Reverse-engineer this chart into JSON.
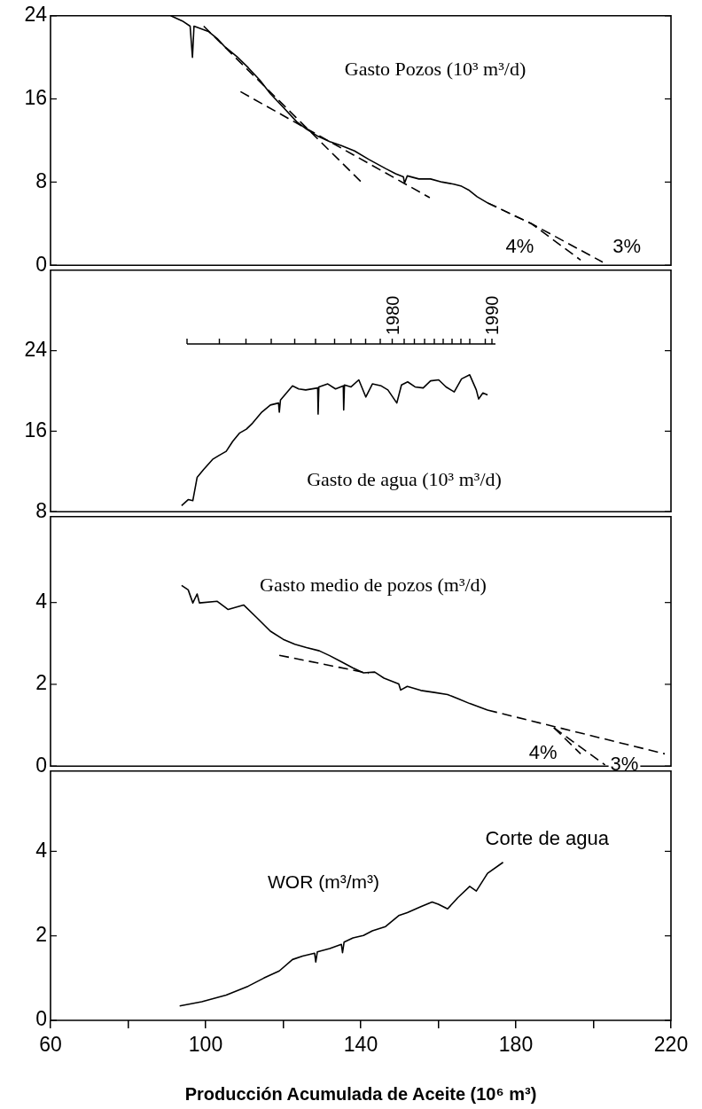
{
  "chart_data": [
    {
      "type": "line",
      "ylabel": "Gasto Pozos (10³ m³/d)",
      "xlim": [
        60,
        220
      ],
      "ylim": [
        0,
        24
      ],
      "yticks": [
        0,
        8,
        16,
        24
      ],
      "tick_labels": "y",
      "marker": "none",
      "legend": false,
      "series": [
        {
          "color": "#000000",
          "line_style": "solid",
          "x": [
            91,
            94,
            96,
            96.6,
            97,
            100.7,
            103,
            105,
            108,
            111,
            114,
            116.7,
            120,
            123.5,
            126,
            129,
            132,
            135,
            138.4,
            142,
            146.4,
            149,
            151,
            151.3,
            152,
            155,
            158,
            161,
            164,
            166,
            168,
            170,
            172.7
          ],
          "values": [
            24,
            23.5,
            23,
            20,
            23,
            22.5,
            21.8,
            21,
            20.1,
            19,
            17.8,
            16.5,
            15.2,
            13.8,
            13.1,
            12.4,
            11.9,
            11.5,
            11,
            10.2,
            9.3,
            8.8,
            8.5,
            7.9,
            8.6,
            8.3,
            8.3,
            8,
            7.8,
            7.6,
            7.2,
            6.6,
            6
          ]
        },
        {
          "color": "#000000",
          "line_style": "dashed",
          "x": [
            99.5,
            140.7
          ],
          "values": [
            23,
            7.8
          ]
        },
        {
          "color": "#000000",
          "line_style": "dashed",
          "x": [
            109,
            157.8
          ],
          "values": [
            16.7,
            6.5
          ]
        },
        {
          "color": "#000000",
          "line_style": "dashed",
          "x": [
            172.7,
            184,
            196.7
          ],
          "values": [
            6,
            4,
            0.5
          ]
        },
        {
          "color": "#000000",
          "line_style": "dashed",
          "x": [
            172.7,
            184,
            202.4
          ],
          "values": [
            6,
            4,
            0.3
          ]
        }
      ],
      "annotations": [
        {
          "text": "4%",
          "x": 181,
          "y": 1.7
        },
        {
          "text": "3%",
          "x": 208.6,
          "y": 1.7
        }
      ]
    },
    {
      "type": "line",
      "ylabel": "Gasto de agua (10³ m³/d)",
      "xlim": [
        60,
        220
      ],
      "ylim": [
        8,
        32
      ],
      "yticks": [
        8,
        16,
        24
      ],
      "tick_labels": "y",
      "marker": "none",
      "legend": false,
      "annotations": [
        "1980",
        "1990"
      ],
      "series": [
        {
          "color": "#000000",
          "line_style": "solid",
          "x": [
            93.8,
            95.5,
            96.7,
            97.8,
            99.5,
            101.8,
            103.5,
            105.3,
            107,
            108.7,
            110.5,
            112.1,
            114.5,
            116.7,
            118.8,
            119,
            119.3,
            122.4,
            124,
            125.8,
            128.9,
            129,
            129.2,
            131.5,
            133.5,
            135.5,
            135.6,
            135.8,
            137.5,
            139.5,
            141.3,
            143,
            145.3,
            147,
            149.3,
            150.5,
            152.1,
            154,
            156.1,
            158,
            160.1,
            162,
            164.1,
            166,
            168.1,
            169.8,
            170.4,
            171.5,
            172.7
          ],
          "values": [
            8.6,
            9.2,
            9.1,
            11.4,
            12.2,
            13.2,
            13.6,
            14,
            15,
            15.8,
            16.2,
            16.8,
            17.9,
            18.6,
            18.8,
            17.9,
            19.1,
            20.5,
            20.2,
            20.1,
            20.3,
            17.7,
            20.4,
            20.7,
            20.2,
            20.5,
            18.1,
            20.6,
            20.4,
            21.1,
            19.4,
            20.7,
            20.5,
            20.1,
            18.8,
            20.6,
            20.9,
            20.4,
            20.3,
            21,
            21.1,
            20.4,
            19.9,
            21.2,
            21.6,
            20.1,
            19.2,
            19.8,
            19.6
          ]
        }
      ]
    },
    {
      "type": "line",
      "ylabel": "Gasto medio de pozos (m³/d)",
      "xlim": [
        60,
        220
      ],
      "ylim": [
        0,
        6.1
      ],
      "yticks": [
        0,
        2,
        4
      ],
      "tick_labels": "y",
      "marker": "none",
      "legend": false,
      "series": [
        {
          "color": "#000000",
          "line_style": "solid",
          "x": [
            93.8,
            95.5,
            96.7,
            97.8,
            98.4,
            103,
            105.8,
            109.8,
            113.3,
            116.7,
            120,
            123,
            126,
            129.3,
            132,
            135,
            138,
            140.7,
            143.6,
            146,
            149.8,
            150.3,
            152,
            155.5,
            159,
            162.4,
            165,
            168.1,
            172.7
          ],
          "values": [
            4.42,
            4.31,
            3.99,
            4.21,
            3.99,
            4.03,
            3.83,
            3.94,
            3.62,
            3.3,
            3.1,
            2.98,
            2.9,
            2.82,
            2.7,
            2.55,
            2.4,
            2.28,
            2.3,
            2.15,
            2.01,
            1.86,
            1.95,
            1.85,
            1.8,
            1.75,
            1.65,
            1.53,
            1.37
          ]
        },
        {
          "color": "#000000",
          "line_style": "dashed",
          "x": [
            119,
            142
          ],
          "values": [
            2.71,
            2.27
          ]
        },
        {
          "color": "#000000",
          "line_style": "dashed",
          "x": [
            172.7,
            218.4
          ],
          "values": [
            1.37,
            0.3
          ]
        },
        {
          "color": "#000000",
          "line_style": "dashed",
          "x": [
            189.8,
            196.7
          ],
          "values": [
            0.94,
            0.3
          ]
        },
        {
          "color": "#000000",
          "line_style": "dashed",
          "x": [
            189.8,
            203
          ],
          "values": [
            0.94,
            0.03
          ]
        }
      ],
      "annotations": [
        {
          "text": "4%",
          "x": 187,
          "y": 0.31
        },
        {
          "text": "3%",
          "x": 208,
          "y": 0.03
        }
      ]
    },
    {
      "type": "line",
      "ylabel": "WOR (m³/m³)",
      "xlabel": "Producción Acumulada de Aceite (10⁶ m³)",
      "xlim": [
        60,
        220
      ],
      "xticks": [
        60,
        {
          "value": 80,
          "label": null
        },
        100,
        {
          "value": 120,
          "label": null
        },
        140,
        {
          "value": 160,
          "label": null
        },
        180,
        {
          "value": 200,
          "label": null
        },
        220
      ],
      "ylim": [
        0,
        5.9
      ],
      "yticks": [
        0,
        2,
        4
      ],
      "marker": "none",
      "legend": false,
      "series": [
        {
          "color": "#000000",
          "line_style": "solid",
          "x": [
            93.3,
            99,
            105.3,
            111,
            115,
            119,
            122.4,
            125,
            128.1,
            128.4,
            128.8,
            132,
            135,
            135.3,
            135.7,
            138,
            140.7,
            143,
            146.4,
            149.8,
            152,
            155.5,
            158.4,
            160,
            162.4,
            165,
            168.1,
            169.8,
            172.7,
            176.7
          ],
          "values": [
            0.34,
            0.44,
            0.6,
            0.81,
            1,
            1.17,
            1.44,
            1.52,
            1.59,
            1.38,
            1.62,
            1.7,
            1.8,
            1.6,
            1.85,
            1.95,
            2.01,
            2.12,
            2.22,
            2.48,
            2.55,
            2.69,
            2.8,
            2.75,
            2.64,
            2.9,
            3.17,
            3.06,
            3.48,
            3.74
          ]
        }
      ],
      "annotations": [
        "Corte de agua"
      ]
    }
  ]
}
